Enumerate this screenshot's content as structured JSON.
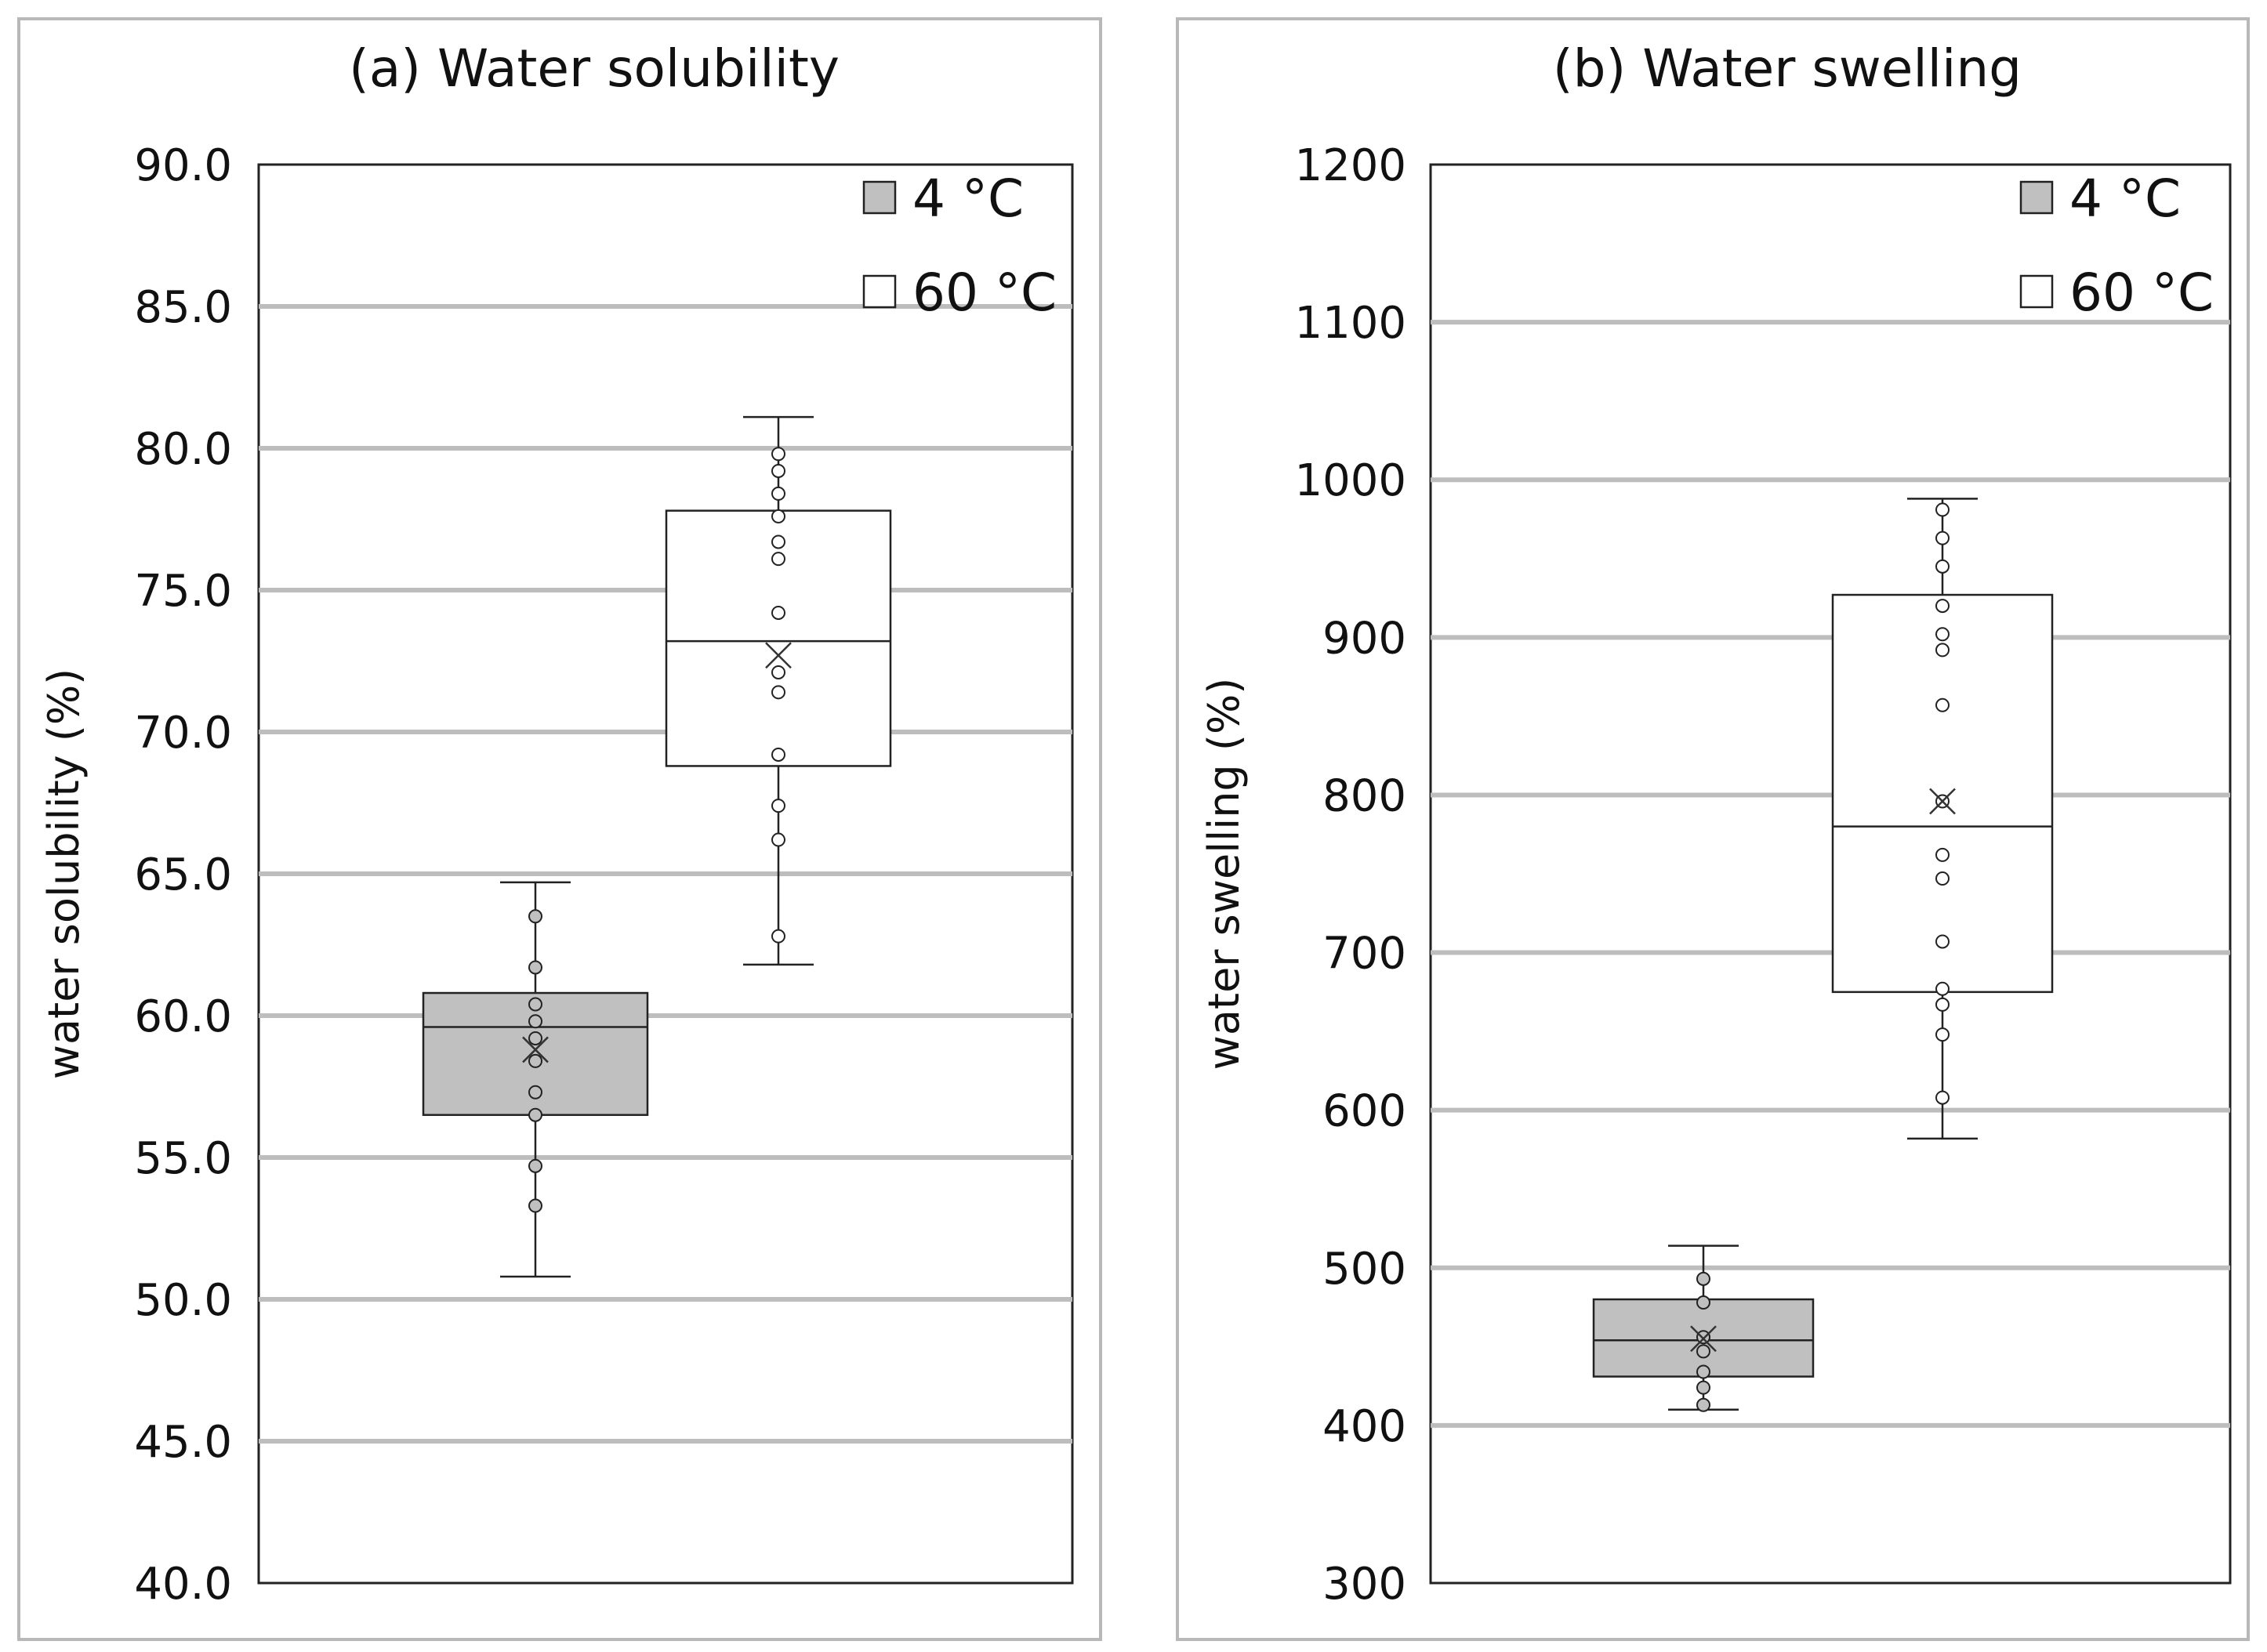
{
  "chart_data": [
    {
      "type": "box",
      "panel_label": "(a)",
      "title": "Water solubility",
      "xlabel": "",
      "ylabel": "water solubility (%)",
      "ylim": [
        40,
        90
      ],
      "yticks": [
        "40.0",
        "45.0",
        "50.0",
        "55.0",
        "60.0",
        "65.0",
        "70.0",
        "75.0",
        "80.0",
        "85.0",
        "90.0"
      ],
      "grid": true,
      "legend_position": "top-right",
      "series": [
        {
          "name": "4 °C",
          "fill": "#c0c0c0",
          "whisker_min": 50.8,
          "q1": 56.5,
          "median": 59.6,
          "q3": 60.8,
          "whisker_max": 64.7,
          "mean": 58.8,
          "points": [
            63.5,
            61.7,
            60.4,
            59.8,
            59.2,
            58.4,
            57.3,
            56.5,
            54.7,
            53.3
          ]
        },
        {
          "name": "60 °C",
          "fill": "#ffffff",
          "whisker_min": 61.8,
          "q1": 68.8,
          "median": 73.2,
          "q3": 77.8,
          "whisker_max": 81.1,
          "mean": 72.7,
          "points": [
            79.8,
            79.2,
            78.4,
            77.6,
            76.7,
            76.1,
            74.2,
            72.1,
            71.4,
            69.2,
            67.4,
            66.2,
            62.8
          ]
        }
      ]
    },
    {
      "type": "box",
      "panel_label": "(b)",
      "title": "Water swelling",
      "xlabel": "",
      "ylabel": "water swelling (%)",
      "ylim": [
        300,
        1200
      ],
      "yticks": [
        "300",
        "400",
        "500",
        "600",
        "700",
        "800",
        "900",
        "1000",
        "1100",
        "1200"
      ],
      "grid": true,
      "legend_position": "top-right",
      "series": [
        {
          "name": "4 °C",
          "fill": "#c0c0c0",
          "whisker_min": 410,
          "q1": 431,
          "median": 454,
          "q3": 480,
          "whisker_max": 514,
          "mean": 455,
          "points": [
            493,
            478,
            456,
            447,
            434,
            424,
            413
          ]
        },
        {
          "name": "60 °C",
          "fill": "#ffffff",
          "whisker_min": 582,
          "q1": 675,
          "median": 780,
          "q3": 927,
          "whisker_max": 988,
          "mean": 796,
          "points": [
            981,
            963,
            945,
            920,
            902,
            892,
            857,
            796,
            762,
            747,
            707,
            677,
            667,
            648,
            608
          ]
        }
      ]
    }
  ]
}
